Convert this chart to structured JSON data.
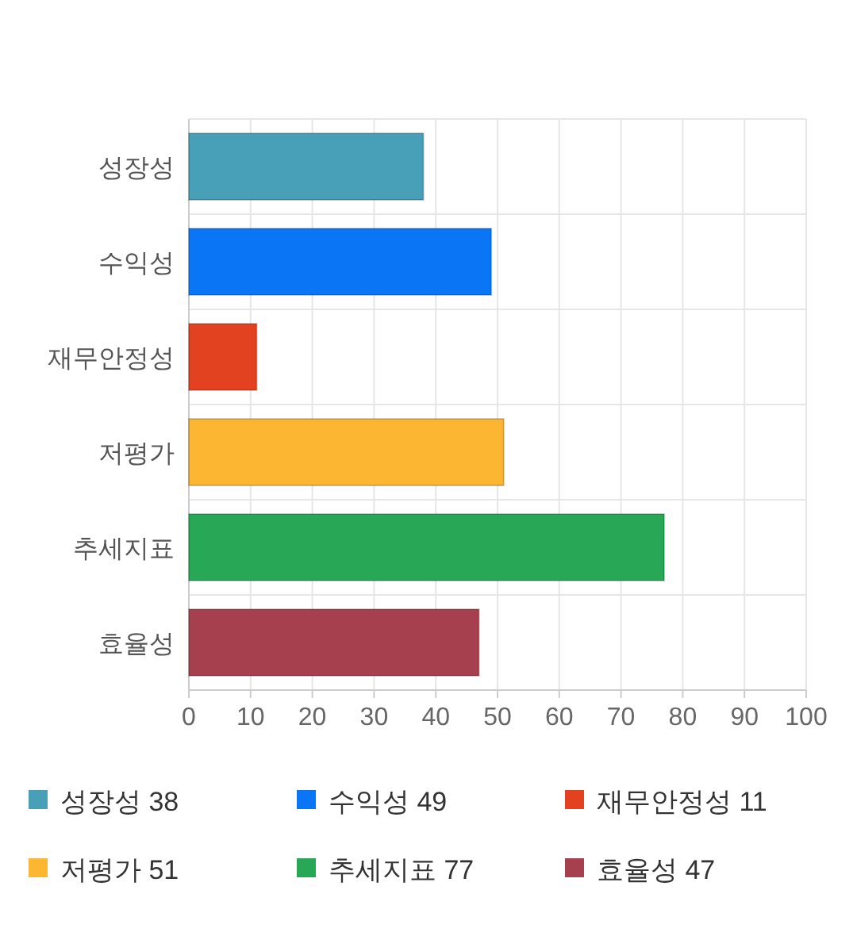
{
  "chart_data": {
    "type": "bar",
    "orientation": "horizontal",
    "stacked": true,
    "categories": [
      "성장성",
      "수익성",
      "재무안정성",
      "저평가",
      "추세지표",
      "효율성"
    ],
    "series": [
      {
        "name": "성장성 38",
        "color": "#48a0b8",
        "values": [
          38,
          null,
          null,
          null,
          null,
          null
        ]
      },
      {
        "name": "수익성 49",
        "color": "#0a76f6",
        "values": [
          null,
          49,
          null,
          null,
          null,
          null
        ]
      },
      {
        "name": "재무안정성 11",
        "color": "#e2421f",
        "values": [
          null,
          null,
          11,
          null,
          null,
          null
        ]
      },
      {
        "name": "저평가 51",
        "color": "#fdb632",
        "values": [
          null,
          null,
          null,
          51,
          null,
          null
        ]
      },
      {
        "name": "추세지표 77",
        "color": "#28a857",
        "values": [
          null,
          null,
          null,
          null,
          77,
          null
        ]
      },
      {
        "name": "효율성 47",
        "color": "#a63f4e",
        "values": [
          null,
          null,
          null,
          null,
          null,
          47
        ]
      }
    ],
    "xlim": [
      0,
      100
    ],
    "xticks": [
      0,
      10,
      20,
      30,
      40,
      50,
      60,
      70,
      80,
      90,
      100
    ],
    "grid": true,
    "legend": "bottom"
  }
}
